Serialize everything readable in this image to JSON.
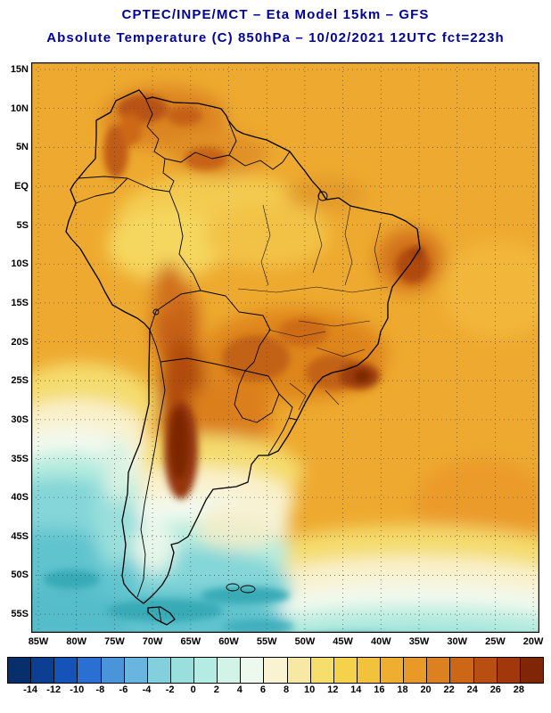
{
  "header": {
    "line1": "CPTEC/INPE/MCT –  Eta Model 15km – GFS",
    "line2": "Absolute Temperature (C) 850hPa – 10/02/2021 12UTC fct=223h",
    "text_color": "#0000A0"
  },
  "map": {
    "lat_labels": [
      "15N",
      "10N",
      "5N",
      "EQ",
      "5S",
      "10S",
      "15S",
      "20S",
      "25S",
      "30S",
      "35S",
      "40S",
      "45S",
      "50S",
      "55S"
    ],
    "lon_labels": [
      "85W",
      "80W",
      "75W",
      "70W",
      "65W",
      "60W",
      "55W",
      "50W",
      "45W",
      "40W",
      "35W",
      "30W",
      "25W",
      "20W"
    ],
    "extent": {
      "lat_top": "15N",
      "lat_bottom": "55S",
      "lon_left": "85W",
      "lon_right": "20W"
    }
  },
  "colorbar": {
    "tick_labels": [
      "-14",
      "-12",
      "-10",
      "-8",
      "-6",
      "-4",
      "-2",
      "0",
      "2",
      "4",
      "6",
      "8",
      "10",
      "12",
      "14",
      "16",
      "18",
      "20",
      "22",
      "24",
      "26",
      "28"
    ],
    "colors": [
      "#072f6b",
      "#0b3f94",
      "#1553b8",
      "#2a6fd2",
      "#4a94da",
      "#68b6e0",
      "#82cfdd",
      "#9adfdd",
      "#b4ebe2",
      "#d2f4e8",
      "#eef9ee",
      "#f9f3d2",
      "#f7e9a4",
      "#f6de6d",
      "#f5d14c",
      "#f3c23c",
      "#efae31",
      "#e89928",
      "#dd8120",
      "#cc6718",
      "#b84e12",
      "#a0380c",
      "#7f2606"
    ],
    "units": "C"
  },
  "chart_data": {
    "type": "heatmap",
    "title": "Absolute Temperature (C) 850hPa",
    "source": "CPTEC/INPE/MCT",
    "model": "Eta Model 15km – GFS",
    "valid": "10/02/2021 12UTC fct=223h",
    "units": "C",
    "scale_min": -14,
    "scale_max": 28,
    "scale_step": 2,
    "legend_position": "bottom",
    "grid": "dotted 5-degree lat/lon",
    "regions": [
      {
        "area": "Andes cordillera 15S-35S",
        "approx_temp_c": "24 to 28"
      },
      {
        "area": "Central Brazil 15S-22S",
        "approx_temp_c": "20 to 24"
      },
      {
        "area": "Southeast Brazil hot spot ~20S 45W",
        "approx_temp_c": "26 to 28"
      },
      {
        "area": "Northeast Brazil interior",
        "approx_temp_c": "20 to 24"
      },
      {
        "area": "Northern Venezuela / Colombia",
        "approx_temp_c": "20 to 26"
      },
      {
        "area": "Amazon basin",
        "approx_temp_c": "12 to 16"
      },
      {
        "area": "Tropical continent and Atlantic baseline",
        "approx_temp_c": "16 to 20"
      },
      {
        "area": "Southeast Pacific 25S-40S",
        "approx_temp_c": "2 to 8"
      },
      {
        "area": "Patagonia and Southern Ocean 45S-57S",
        "approx_temp_c": "-6 to 2"
      },
      {
        "area": "South Atlantic 35S-48S",
        "approx_temp_c": "8 to 16"
      }
    ]
  }
}
